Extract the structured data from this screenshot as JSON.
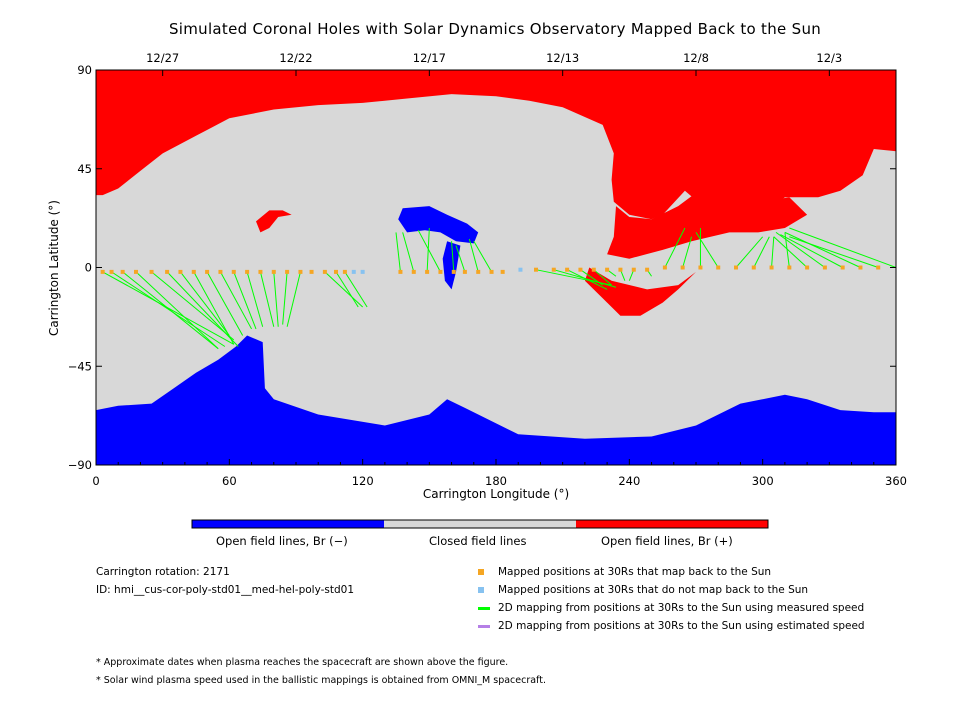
{
  "title": "Simulated Coronal Holes with Solar Dynamics Observatory Mapped Back to the Sun",
  "colors": {
    "open_negative": "#0000ff",
    "closed": "#d8d8d8",
    "open_positive": "#ff0000",
    "mapped_back": "#f5a623",
    "not_mapped": "#87c2f0",
    "measured_speed": "#00ff00",
    "estimated_speed": "#b57fe6"
  },
  "colorbar": {
    "labels": [
      "Open field lines, Br (−)",
      "Closed field lines",
      "Open field lines, Br (+)"
    ]
  },
  "info": {
    "rotation": "Carrington rotation: 2171",
    "id": "ID: hmi__cus-cor-poly-std01__med-hel-poly-std01"
  },
  "legend": [
    {
      "label": "Mapped positions at 30Rs that map back to the Sun",
      "symbol": "square",
      "color_key": "mapped_back"
    },
    {
      "label": "Mapped positions at 30Rs that do not map back to the Sun",
      "symbol": "square",
      "color_key": "not_mapped"
    },
    {
      "label": "2D mapping from positions at 30Rs to the Sun using measured speed",
      "symbol": "line",
      "color_key": "measured_speed"
    },
    {
      "label": "2D mapping from positions at 30Rs to the Sun using estimated speed",
      "symbol": "line",
      "color_key": "estimated_speed"
    }
  ],
  "notes": [
    "* Approximate dates when plasma reaches the spacecraft are shown above the figure.",
    "* Solar wind plasma speed used in the ballistic mappings is obtained from OMNI_M spacecraft."
  ],
  "chart_data": {
    "type": "heatmap",
    "title": "Simulated Coronal Holes with Solar Dynamics Observatory Mapped Back to the Sun",
    "xlabel": "Carrington Longitude (°)",
    "ylabel": "Carrington Latitude (°)",
    "xlim": [
      0,
      360
    ],
    "ylim": [
      -90,
      90
    ],
    "x_ticks": [
      0,
      60,
      120,
      180,
      240,
      300,
      360
    ],
    "y_ticks": [
      90,
      45,
      0,
      -45,
      -90
    ],
    "y_tick_labels": [
      "90",
      "45",
      "0",
      "−45",
      "−90"
    ],
    "top_axis": {
      "labels": [
        "12/27",
        "12/22",
        "12/17",
        "12/13",
        "12/8",
        "12/3"
      ],
      "longitudes": [
        30,
        90,
        150,
        210,
        270,
        330
      ]
    },
    "regions": {
      "north_positive_polar": [
        [
          0,
          90
        ],
        [
          360,
          90
        ],
        [
          360,
          53
        ],
        [
          350,
          54
        ],
        [
          345,
          42
        ],
        [
          335,
          35
        ],
        [
          325,
          32
        ],
        [
          310,
          32
        ],
        [
          300,
          24
        ],
        [
          290,
          20
        ],
        [
          280,
          22
        ],
        [
          265,
          35
        ],
        [
          255,
          24
        ],
        [
          250,
          22
        ],
        [
          240,
          24
        ],
        [
          233,
          30
        ],
        [
          232,
          40
        ],
        [
          233,
          52
        ],
        [
          228,
          65
        ],
        [
          210,
          73
        ],
        [
          195,
          76
        ],
        [
          180,
          78
        ],
        [
          160,
          79
        ],
        [
          140,
          77
        ],
        [
          120,
          75
        ],
        [
          100,
          74
        ],
        [
          80,
          72
        ],
        [
          60,
          68
        ],
        [
          45,
          60
        ],
        [
          30,
          52
        ],
        [
          20,
          44
        ],
        [
          10,
          36
        ],
        [
          3,
          33
        ],
        [
          0,
          33
        ]
      ],
      "north_positive_lobe": [
        [
          230,
          6
        ],
        [
          240,
          4
        ],
        [
          255,
          8
        ],
        [
          268,
          12
        ],
        [
          285,
          16
        ],
        [
          298,
          16
        ],
        [
          310,
          18
        ],
        [
          320,
          24
        ],
        [
          312,
          32
        ],
        [
          300,
          30
        ],
        [
          288,
          26
        ],
        [
          270,
          34
        ],
        [
          262,
          28
        ],
        [
          250,
          22
        ],
        [
          240,
          23
        ],
        [
          234,
          28
        ],
        [
          233,
          14
        ]
      ],
      "equatorial_positive": [
        [
          222,
          0
        ],
        [
          232,
          -6
        ],
        [
          248,
          -10
        ],
        [
          262,
          -8
        ],
        [
          270,
          -2
        ],
        [
          262,
          -10
        ],
        [
          255,
          -16
        ],
        [
          245,
          -22
        ],
        [
          236,
          -22
        ],
        [
          228,
          -14
        ],
        [
          220,
          -6
        ]
      ],
      "red_spot_west": [
        [
          72,
          21
        ],
        [
          78,
          26
        ],
        [
          84,
          26
        ],
        [
          88,
          24
        ],
        [
          82,
          23
        ],
        [
          78,
          18
        ],
        [
          74,
          16
        ]
      ],
      "north_negative": [
        [
          138,
          27
        ],
        [
          150,
          28
        ],
        [
          158,
          24
        ],
        [
          167,
          20
        ],
        [
          172,
          16
        ],
        [
          170,
          11
        ],
        [
          162,
          12
        ],
        [
          155,
          16
        ],
        [
          148,
          17
        ],
        [
          140,
          16
        ],
        [
          136,
          22
        ]
      ],
      "equatorial_negative_tail": [
        [
          158,
          12
        ],
        [
          164,
          10
        ],
        [
          162,
          -2
        ],
        [
          160,
          -10
        ],
        [
          157,
          -6
        ],
        [
          156,
          4
        ]
      ],
      "south_negative_polar": [
        [
          0,
          -65
        ],
        [
          10,
          -63
        ],
        [
          25,
          -62
        ],
        [
          35,
          -55
        ],
        [
          45,
          -48
        ],
        [
          55,
          -42
        ],
        [
          63,
          -36
        ],
        [
          68,
          -31
        ],
        [
          75,
          -34
        ],
        [
          76,
          -55
        ],
        [
          80,
          -60
        ],
        [
          100,
          -67
        ],
        [
          130,
          -72
        ],
        [
          150,
          -67
        ],
        [
          158,
          -60
        ],
        [
          166,
          -64
        ],
        [
          190,
          -76
        ],
        [
          220,
          -78
        ],
        [
          250,
          -77
        ],
        [
          270,
          -72
        ],
        [
          290,
          -62
        ],
        [
          310,
          -58
        ],
        [
          320,
          -60
        ],
        [
          335,
          -65
        ],
        [
          350,
          -66
        ],
        [
          360,
          -66
        ],
        [
          360,
          -90
        ],
        [
          0,
          -90
        ]
      ]
    },
    "mapped_points_back": {
      "lon": [
        3,
        7,
        12,
        18,
        25,
        32,
        38,
        44,
        50,
        56,
        62,
        68,
        74,
        80,
        86,
        92,
        97,
        103,
        108,
        112,
        137,
        143,
        149,
        155,
        161,
        166,
        172,
        178,
        183,
        198,
        206,
        212,
        218,
        224,
        230,
        236,
        242,
        248,
        256,
        264,
        272,
        280,
        288,
        296,
        304,
        312,
        320,
        328,
        336,
        344,
        352
      ],
      "lat": [
        -2,
        -2,
        -2,
        -2,
        -2,
        -2,
        -2,
        -2,
        -2,
        -2,
        -2,
        -2,
        -2,
        -2,
        -2,
        -2,
        -2,
        -2,
        -2,
        -2,
        -2,
        -2,
        -2,
        -2,
        -2,
        -2,
        -2,
        -2,
        -2,
        -1,
        -1,
        -1,
        -1,
        -1,
        -1,
        -1,
        -1,
        -1,
        0,
        0,
        0,
        0,
        0,
        0,
        0,
        0,
        0,
        0,
        0,
        0,
        0
      ]
    },
    "mapped_points_not_back": {
      "lon": [
        116,
        120,
        191
      ],
      "lat": [
        -2,
        -2,
        -1
      ]
    },
    "mapping_lines_measured": [
      [
        [
          3,
          -2
        ],
        [
          62,
          -35
        ]
      ],
      [
        [
          7,
          -2
        ],
        [
          58,
          -36
        ]
      ],
      [
        [
          12,
          -2
        ],
        [
          55,
          -37
        ]
      ],
      [
        [
          18,
          -2
        ],
        [
          55,
          -37
        ]
      ],
      [
        [
          25,
          -2
        ],
        [
          62,
          -33
        ]
      ],
      [
        [
          32,
          -2
        ],
        [
          64,
          -36
        ]
      ],
      [
        [
          38,
          -2
        ],
        [
          60,
          -31
        ]
      ],
      [
        [
          44,
          -2
        ],
        [
          62,
          -35
        ]
      ],
      [
        [
          50,
          -2
        ],
        [
          66,
          -31
        ]
      ],
      [
        [
          56,
          -2
        ],
        [
          70,
          -28
        ]
      ],
      [
        [
          62,
          -2
        ],
        [
          72,
          -28
        ]
      ],
      [
        [
          68,
          -2
        ],
        [
          75,
          -27
        ]
      ],
      [
        [
          74,
          -2
        ],
        [
          80,
          -27
        ]
      ],
      [
        [
          80,
          -2
        ],
        [
          82,
          -27
        ]
      ],
      [
        [
          86,
          -2
        ],
        [
          84,
          -26
        ]
      ],
      [
        [
          92,
          -2
        ],
        [
          86,
          -27
        ]
      ],
      [
        [
          103,
          -2
        ],
        [
          120,
          -18
        ]
      ],
      [
        [
          108,
          -2
        ],
        [
          118,
          -18
        ]
      ],
      [
        [
          112,
          -2
        ],
        [
          122,
          -18
        ]
      ],
      [
        [
          137,
          -2
        ],
        [
          135,
          16
        ]
      ],
      [
        [
          143,
          -2
        ],
        [
          138,
          16
        ]
      ],
      [
        [
          149,
          -2
        ],
        [
          150,
          18
        ]
      ],
      [
        [
          155,
          -2
        ],
        [
          145,
          17
        ]
      ],
      [
        [
          161,
          -2
        ],
        [
          160,
          12
        ]
      ],
      [
        [
          166,
          -2
        ],
        [
          162,
          10
        ]
      ],
      [
        [
          172,
          -2
        ],
        [
          168,
          13
        ]
      ],
      [
        [
          178,
          -2
        ],
        [
          170,
          12
        ]
      ],
      [
        [
          198,
          -1
        ],
        [
          232,
          -8
        ]
      ],
      [
        [
          206,
          -1
        ],
        [
          234,
          -9
        ]
      ],
      [
        [
          212,
          -1
        ],
        [
          230,
          -10
        ]
      ],
      [
        [
          218,
          -1
        ],
        [
          228,
          -8
        ]
      ],
      [
        [
          224,
          -1
        ],
        [
          232,
          -8
        ]
      ],
      [
        [
          230,
          -1
        ],
        [
          234,
          -4
        ]
      ],
      [
        [
          236,
          -1
        ],
        [
          238,
          -6
        ]
      ],
      [
        [
          242,
          -1
        ],
        [
          240,
          -6
        ]
      ],
      [
        [
          248,
          -1
        ],
        [
          250,
          -4
        ]
      ],
      [
        [
          256,
          0
        ],
        [
          265,
          18
        ]
      ],
      [
        [
          264,
          0
        ],
        [
          268,
          14
        ]
      ],
      [
        [
          272,
          0
        ],
        [
          272,
          18
        ]
      ],
      [
        [
          280,
          0
        ],
        [
          270,
          16
        ]
      ],
      [
        [
          288,
          0
        ],
        [
          300,
          14
        ]
      ],
      [
        [
          296,
          0
        ],
        [
          303,
          14
        ]
      ],
      [
        [
          304,
          0
        ],
        [
          305,
          14
        ]
      ],
      [
        [
          312,
          0
        ],
        [
          310,
          16
        ]
      ],
      [
        [
          320,
          0
        ],
        [
          305,
          14
        ]
      ],
      [
        [
          328,
          0
        ],
        [
          306,
          16
        ]
      ],
      [
        [
          336,
          0
        ],
        [
          308,
          15
        ]
      ],
      [
        [
          344,
          0
        ],
        [
          310,
          16
        ]
      ],
      [
        [
          352,
          0
        ],
        [
          312,
          14
        ]
      ],
      [
        [
          360,
          0
        ],
        [
          312,
          18
        ]
      ]
    ]
  }
}
